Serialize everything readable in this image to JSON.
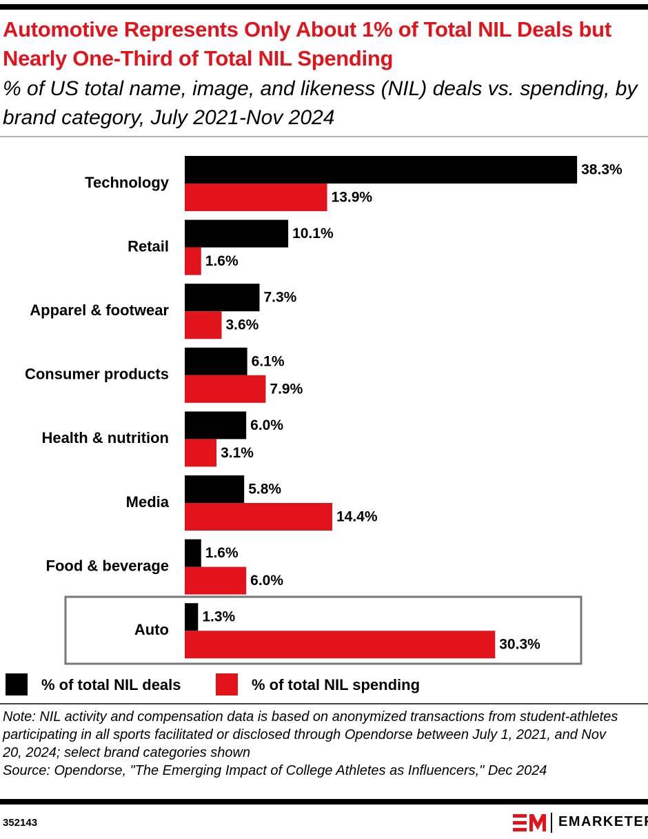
{
  "chart_data": {
    "type": "hbar",
    "title": "Automotive Represents Only About 1% of Total NIL Deals but Nearly One-Third of Total NIL Spending",
    "subtitle": "% of US total name, image, and likeness (NIL) deals vs. spending, by brand category, July 2021-Nov 2024",
    "categories": [
      "Technology",
      "Retail",
      "Apparel & footwear",
      "Consumer products",
      "Health & nutrition",
      "Media",
      "Food & beverage",
      "Auto"
    ],
    "series": [
      {
        "name": "% of total NIL deals",
        "color": "#000000",
        "values": [
          38.3,
          10.1,
          7.3,
          6.1,
          6.0,
          5.8,
          1.6,
          1.3
        ],
        "value_labels": [
          "38.3%",
          "10.1%",
          "7.3%",
          "6.1%",
          "6.0%",
          "5.8%",
          "1.6%",
          "1.3%"
        ]
      },
      {
        "name": "% of total NIL spending",
        "color": "#e3131b",
        "values": [
          13.9,
          1.6,
          3.6,
          7.9,
          3.1,
          14.4,
          6.0,
          30.3
        ],
        "value_labels": [
          "13.9%",
          "1.6%",
          "3.6%",
          "7.9%",
          "3.1%",
          "14.4%",
          "6.0%",
          "30.3%"
        ]
      }
    ],
    "note": "Note: NIL activity and compensation data is based on anonymized transactions from student-athletes participating in all sports facilitated or disclosed through Opendorse between July 1, 2021, and Nov 20, 2024; select brand categories shown",
    "source": "Source: Opendorse, \"The Emerging Impact of College Athletes as Influencers,\" Dec 2024",
    "chart_id": "352143",
    "brand": "EMARKETER"
  }
}
